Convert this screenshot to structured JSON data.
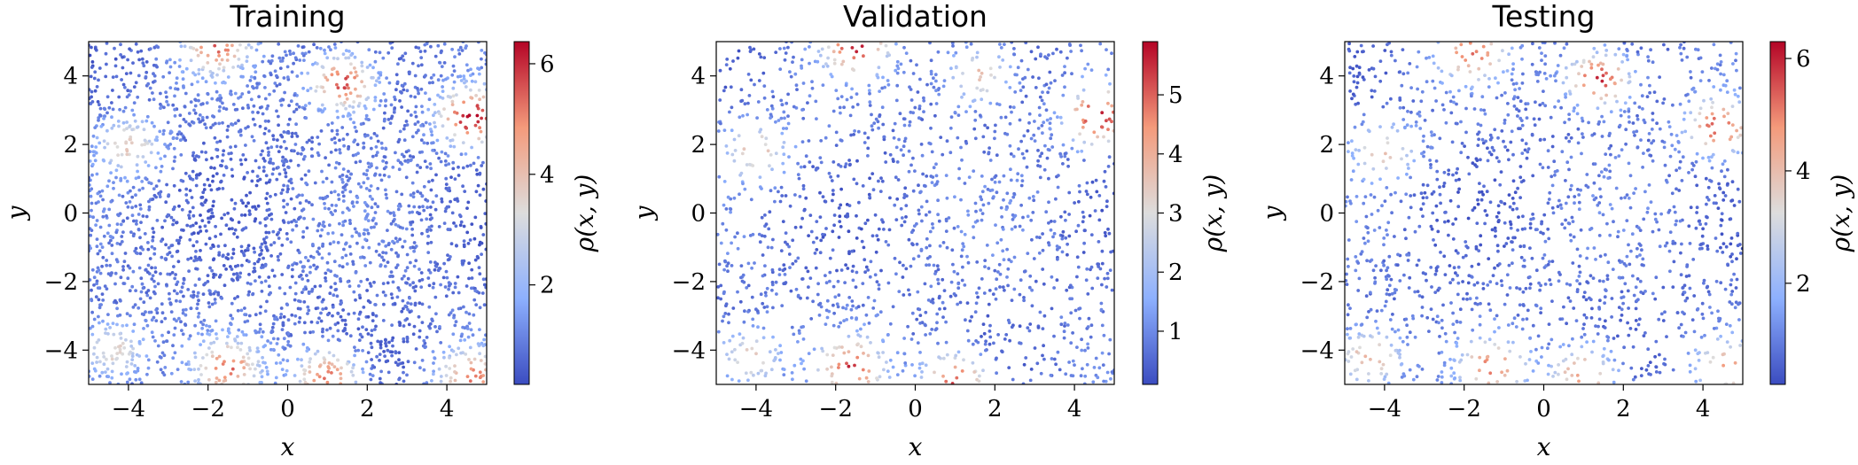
{
  "chart_data": [
    {
      "type": "scatter",
      "title": "Training",
      "xlabel": "x",
      "ylabel": "y",
      "xlim": [
        -5,
        5
      ],
      "ylim": [
        -5,
        5
      ],
      "xticks": [
        -4,
        -2,
        0,
        2,
        4
      ],
      "yticks": [
        -4,
        -2,
        0,
        2,
        4
      ],
      "xtick_labels": [
        "−4",
        "−2",
        "0",
        "2",
        "4"
      ],
      "ytick_labels": [
        "−4",
        "−2",
        "0",
        "2",
        "4"
      ],
      "n_points": 3000,
      "colorbar": {
        "label": "ρ(x, y)",
        "min": 0.2,
        "max": 6.4,
        "ticks": [
          2,
          4,
          6
        ],
        "tick_labels": [
          "2",
          "4",
          "6"
        ],
        "colormap": "coolwarm"
      },
      "hotspots": [
        {
          "x": -1.8,
          "y": 4.9,
          "peak": 5.2
        },
        {
          "x": 1.4,
          "y": 3.8,
          "peak": 6.0
        },
        {
          "x": 4.6,
          "y": 2.8,
          "peak": 6.4
        },
        {
          "x": -1.5,
          "y": -4.5,
          "peak": 5.0
        },
        {
          "x": 1.0,
          "y": -4.8,
          "peak": 5.6
        },
        {
          "x": 4.6,
          "y": -4.8,
          "peak": 5.0
        },
        {
          "x": -4.0,
          "y": 2.0,
          "peak": 3.8
        },
        {
          "x": -4.4,
          "y": -4.0,
          "peak": 3.9
        }
      ]
    },
    {
      "type": "scatter",
      "title": "Validation",
      "xlabel": "x",
      "ylabel": "y",
      "xlim": [
        -5,
        5
      ],
      "ylim": [
        -5,
        5
      ],
      "xticks": [
        -4,
        -2,
        0,
        2,
        4
      ],
      "yticks": [
        -4,
        -2,
        0,
        2,
        4
      ],
      "xtick_labels": [
        "−4",
        "−2",
        "0",
        "2",
        "4"
      ],
      "ytick_labels": [
        "−4",
        "−2",
        "0",
        "2",
        "4"
      ],
      "n_points": 1600,
      "colorbar": {
        "label": "ρ(x, y)",
        "min": 0.1,
        "max": 5.9,
        "ticks": [
          1,
          2,
          3,
          4,
          5
        ],
        "tick_labels": [
          "1",
          "2",
          "3",
          "4",
          "5"
        ],
        "colormap": "coolwarm"
      },
      "hotspots": [
        {
          "x": -1.5,
          "y": 4.9,
          "peak": 5.3
        },
        {
          "x": 1.6,
          "y": 4.0,
          "peak": 4.0
        },
        {
          "x": 4.6,
          "y": 2.8,
          "peak": 5.7
        },
        {
          "x": -1.6,
          "y": -4.5,
          "peak": 5.0
        },
        {
          "x": 1.0,
          "y": -4.9,
          "peak": 5.4
        },
        {
          "x": -4.0,
          "y": 1.8,
          "peak": 3.7
        },
        {
          "x": -4.2,
          "y": -4.2,
          "peak": 3.6
        }
      ]
    },
    {
      "type": "scatter",
      "title": "Testing",
      "xlabel": "x",
      "ylabel": "y",
      "xlim": [
        -5,
        5
      ],
      "ylim": [
        -5,
        5
      ],
      "xticks": [
        -4,
        -2,
        0,
        2,
        4
      ],
      "yticks": [
        -4,
        -2,
        0,
        2,
        4
      ],
      "xtick_labels": [
        "−4",
        "−2",
        "0",
        "2",
        "4"
      ],
      "ytick_labels": [
        "−4",
        "−2",
        "0",
        "2",
        "4"
      ],
      "n_points": 1700,
      "colorbar": {
        "label": "ρ(x, y)",
        "min": 0.2,
        "max": 6.3,
        "ticks": [
          2,
          4,
          6
        ],
        "tick_labels": [
          "2",
          "4",
          "6"
        ],
        "colormap": "coolwarm"
      },
      "hotspots": [
        {
          "x": -1.8,
          "y": 4.7,
          "peak": 5.0
        },
        {
          "x": 1.4,
          "y": 3.9,
          "peak": 6.2
        },
        {
          "x": 4.4,
          "y": 2.5,
          "peak": 5.5
        },
        {
          "x": -1.3,
          "y": -4.5,
          "peak": 4.8
        },
        {
          "x": 1.0,
          "y": -4.7,
          "peak": 5.0
        },
        {
          "x": 4.6,
          "y": -4.5,
          "peak": 4.2
        },
        {
          "x": -4.4,
          "y": -4.2,
          "peak": 4.5
        },
        {
          "x": -4.0,
          "y": 1.8,
          "peak": 3.8
        }
      ]
    }
  ]
}
